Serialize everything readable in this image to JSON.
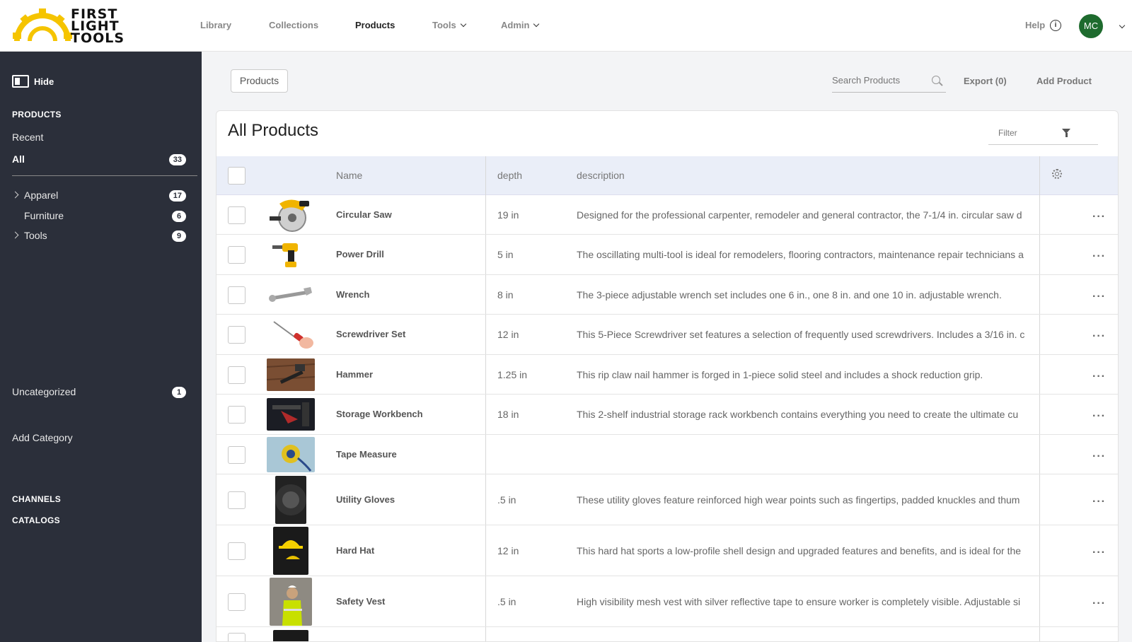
{
  "brand": {
    "logo_lines": [
      "FIRST",
      "LIGHT",
      "TOOLS"
    ],
    "accent": "#f5c400"
  },
  "nav": {
    "items": [
      {
        "label": "Library"
      },
      {
        "label": "Collections"
      },
      {
        "label": "Products",
        "active": true
      },
      {
        "label": "Tools",
        "dropdown": true
      },
      {
        "label": "Admin",
        "dropdown": true
      }
    ],
    "help_label": "Help",
    "avatar_initials": "MC",
    "avatar_color": "#1e6b2e"
  },
  "sidebar": {
    "hide_label": "Hide",
    "products_heading": "PRODUCTS",
    "recent_label": "Recent",
    "all_label": "All",
    "all_count": "33",
    "categories": [
      {
        "label": "Apparel",
        "count": "17",
        "expandable": true
      },
      {
        "label": "Furniture",
        "count": "6",
        "expandable": false
      },
      {
        "label": "Tools",
        "count": "9",
        "expandable": true
      }
    ],
    "uncategorized_label": "Uncategorized",
    "uncategorized_count": "1",
    "add_category_label": "Add Category",
    "channels_heading": "CHANNELS",
    "catalogs_heading": "CATALOGS",
    "bg_color": "#2b2f3a"
  },
  "toolbar": {
    "breadcrumb": "Products",
    "search_placeholder": "Search Products",
    "export_label": "Export (0)",
    "add_label": "Add Product"
  },
  "table": {
    "title": "All Products",
    "filter_label": "Filter",
    "columns": {
      "name": "Name",
      "depth": "depth",
      "description": "description"
    },
    "rows": [
      {
        "name": "Circular Saw",
        "depth": "19 in",
        "description": "Designed for the professional carpenter, remodeler and general contractor, the 7-1/4 in. circular saw d",
        "thumb": "saw"
      },
      {
        "name": "Power Drill",
        "depth": "5 in",
        "description": "The oscillating multi-tool is ideal for remodelers, flooring contractors, maintenance repair technicians a",
        "thumb": "drill"
      },
      {
        "name": "Wrench",
        "depth": "8 in",
        "description": "The 3-piece adjustable wrench set includes one 6 in., one 8 in. and one 10 in. adjustable wrench.",
        "thumb": "wrench"
      },
      {
        "name": "Screwdriver Set",
        "depth": "12 in",
        "description": "This 5-Piece Screwdriver set features a selection of frequently used screwdrivers. Includes a 3/16 in. c",
        "thumb": "screwdriver"
      },
      {
        "name": "Hammer",
        "depth": "1.25 in",
        "description": "This rip claw nail hammer is forged in 1-piece solid steel and includes a shock reduction grip.",
        "thumb": "hammer"
      },
      {
        "name": "Storage Workbench",
        "depth": "18 in",
        "description": "This 2-shelf industrial storage rack workbench contains everything you need to create the ultimate cu",
        "thumb": "workbench"
      },
      {
        "name": "Tape Measure",
        "depth": "",
        "description": "",
        "thumb": "tape"
      },
      {
        "name": "Utility Gloves",
        "depth": ".5 in",
        "description": "These utility gloves feature reinforced high wear points such as fingertips, padded knuckles and thum",
        "thumb": "gloves"
      },
      {
        "name": "Hard Hat",
        "depth": "12 in",
        "description": "This hard hat sports a low-profile shell design and upgraded features and benefits, and is ideal for the",
        "thumb": "hardhat"
      },
      {
        "name": "Safety Vest",
        "depth": ".5 in",
        "description": "High visibility mesh vest with silver reflective tape to ensure worker is completely visible. Adjustable si",
        "thumb": "vest"
      }
    ]
  }
}
